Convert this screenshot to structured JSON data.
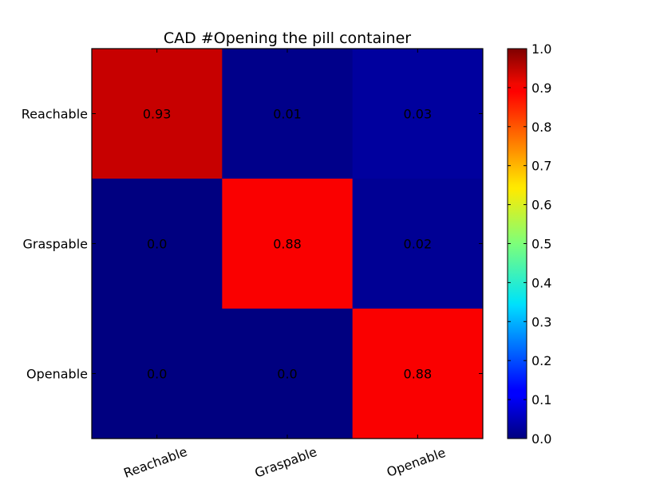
{
  "chart_data": {
    "type": "heatmap",
    "title": "CAD #Opening the pill container",
    "xlabel": "",
    "ylabel": "",
    "x_categories": [
      "Reachable",
      "Graspable",
      "Openable"
    ],
    "y_categories": [
      "Reachable",
      "Graspable",
      "Openable"
    ],
    "values": [
      [
        0.93,
        0.01,
        0.03
      ],
      [
        0.0,
        0.88,
        0.02
      ],
      [
        0.0,
        0.0,
        0.88
      ]
    ],
    "cell_labels": [
      [
        "0.93",
        "0.01",
        "0.03"
      ],
      [
        "0.0",
        "0.88",
        "0.02"
      ],
      [
        "0.0",
        "0.0",
        "0.88"
      ]
    ],
    "colormap": "jet",
    "vmin": 0.0,
    "vmax": 1.0,
    "colorbar": {
      "ticks": [
        0.0,
        0.1,
        0.2,
        0.3,
        0.4,
        0.5,
        0.6,
        0.7,
        0.8,
        0.9,
        1.0
      ],
      "tick_labels": [
        "0.0",
        "0.1",
        "0.2",
        "0.3",
        "0.4",
        "0.5",
        "0.6",
        "0.7",
        "0.8",
        "0.9",
        "1.0"
      ]
    },
    "grid": false,
    "legend": "colorbar-right"
  }
}
